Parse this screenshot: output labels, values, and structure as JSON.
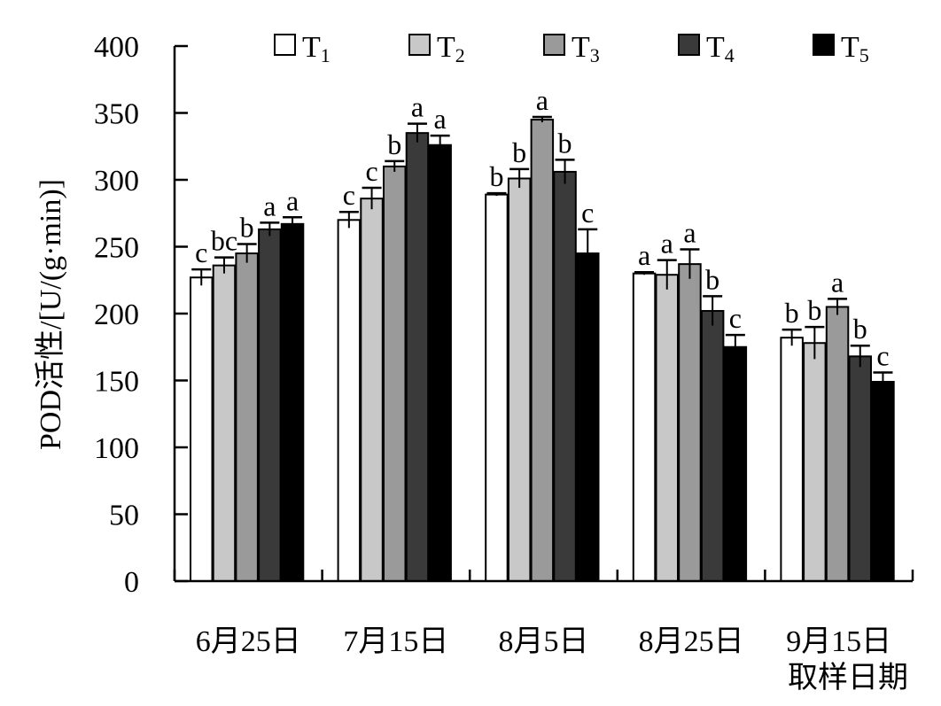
{
  "chart_data": {
    "type": "bar",
    "ylabel": "POD活性/[U/(g·min)]",
    "xlabel": "取样日期",
    "ylim": [
      0,
      400
    ],
    "yticks": [
      0,
      50,
      100,
      150,
      200,
      250,
      300,
      350,
      400
    ],
    "legend_position": "top",
    "categories": [
      "6月25日",
      "7月15日",
      "8月5日",
      "8月25日",
      "9月15日"
    ],
    "series": [
      {
        "name": "T",
        "sub": "1",
        "color": "#ffffff",
        "values": [
          227,
          270,
          289,
          230,
          182
        ],
        "errors": [
          6,
          6,
          1,
          1,
          6
        ],
        "labels": [
          "c",
          "c",
          "b",
          "a",
          "b"
        ]
      },
      {
        "name": "T",
        "sub": "2",
        "color": "#c8c8c8",
        "values": [
          236,
          286,
          301,
          229,
          178
        ],
        "errors": [
          6,
          8,
          7,
          11,
          12
        ],
        "labels": [
          "bc",
          "c",
          "b",
          "a",
          "b"
        ]
      },
      {
        "name": "T",
        "sub": "3",
        "color": "#9a9a9a",
        "values": [
          245,
          310,
          345,
          237,
          205
        ],
        "errors": [
          7,
          4,
          2,
          11,
          6
        ],
        "labels": [
          "b",
          "b",
          "a",
          "a",
          "a"
        ]
      },
      {
        "name": "T",
        "sub": "4",
        "color": "#3a3a3a",
        "values": [
          263,
          335,
          306,
          202,
          168
        ],
        "errors": [
          5,
          7,
          9,
          11,
          8
        ],
        "labels": [
          "a",
          "a",
          "b",
          "b",
          "b"
        ]
      },
      {
        "name": "T",
        "sub": "5",
        "color": "#000000",
        "values": [
          267,
          326,
          245,
          175,
          149
        ],
        "errors": [
          5,
          7,
          18,
          9,
          7
        ],
        "labels": [
          "a",
          "a",
          "c",
          "c",
          "c"
        ]
      }
    ]
  }
}
